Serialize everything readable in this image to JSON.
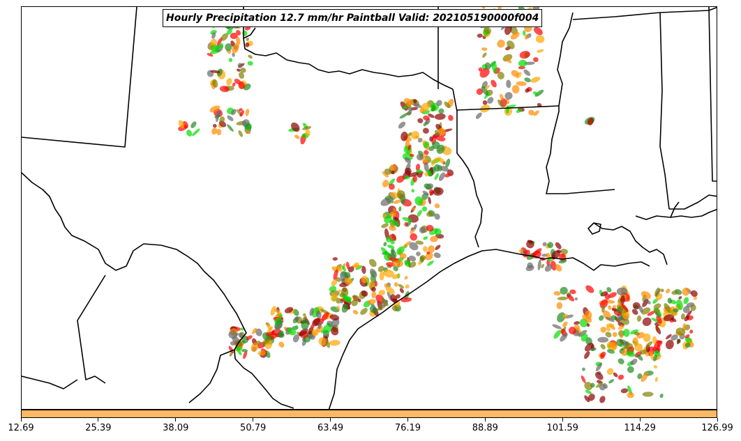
{
  "title": "Hourly Precipitation 12.7 mm/hr Paintball Valid: 202105190000f004",
  "colors": {
    "colorbar_fill": "#fdb863",
    "member_colors": [
      "#ff0000",
      "#ff8c00",
      "#8b0000",
      "#228b22",
      "#00dd00",
      "#808000",
      "#ffa500",
      "#696969"
    ]
  },
  "colorbar": {
    "ticks": [
      "12.69",
      "25.39",
      "38.09",
      "50.79",
      "63.49",
      "76.19",
      "88.89",
      "101.59",
      "114.29",
      "126.99"
    ]
  }
}
